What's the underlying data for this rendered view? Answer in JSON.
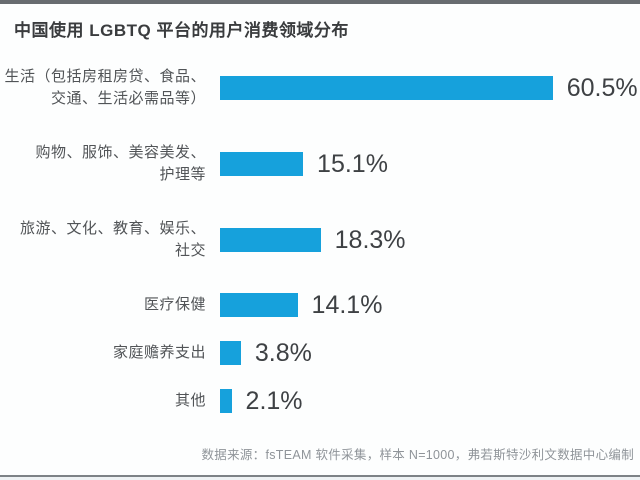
{
  "title": "中国使用 LGBTQ 平台的用户消费领域分布",
  "source": "数据来源：fsTEAM 软件采集，样本 N=1000，弗若斯特沙利文数据中心编制",
  "colors": {
    "bar": "#16a1dc",
    "value_text": "#3e4144",
    "category_text": "#515457"
  },
  "chart_data": {
    "type": "bar",
    "orientation": "horizontal",
    "title": "中国使用 LGBTQ 平台的用户消费领域分布",
    "categories": [
      "生活（包括房租房贷、食品、交通、生活必需品等）",
      "购物、服饰、美容美发、护理等",
      "旅游、文化、教育、娱乐、社交",
      "医疗保健",
      "家庭赡养支出",
      "其他"
    ],
    "category_lines": [
      [
        "生活（包括房租房贷、食品、",
        "交通、生活必需品等）"
      ],
      [
        "购物、服饰、美容美发、",
        "护理等"
      ],
      [
        "旅游、文化、教育、娱乐、",
        "社交"
      ],
      [
        "医疗保健"
      ],
      [
        "家庭赡养支出"
      ],
      [
        "其他"
      ]
    ],
    "values": [
      60.5,
      15.1,
      18.3,
      14.1,
      3.8,
      2.1
    ],
    "value_labels": [
      "60.5%",
      "15.1%",
      "18.3%",
      "14.1%",
      "3.8%",
      "2.1%"
    ],
    "xlim": [
      0,
      65
    ],
    "grid": false,
    "legend": false,
    "unit": "%"
  }
}
